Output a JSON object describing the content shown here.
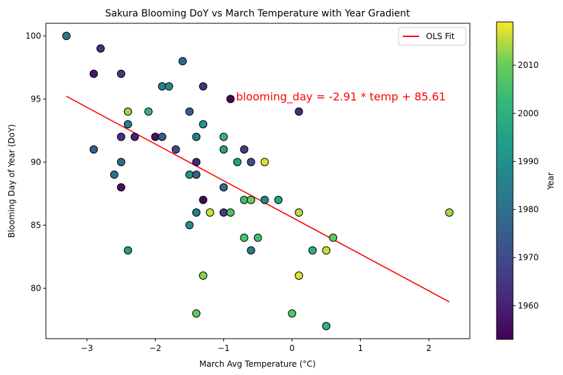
{
  "chart_data": {
    "type": "scatter",
    "title": "Sakura Blooming DoY vs March Temperature with Year Gradient",
    "xlabel": "March Avg Temperature (°C)",
    "ylabel": "Blooming Day of Year (DoY)",
    "xlim": [
      -3.6,
      2.6
    ],
    "ylim": [
      76,
      101
    ],
    "xticks": [
      {
        "value": -3,
        "label": "−3"
      },
      {
        "value": -2,
        "label": "−2"
      },
      {
        "value": -1,
        "label": "−1"
      },
      {
        "value": 0,
        "label": "0"
      },
      {
        "value": 1,
        "label": "1"
      },
      {
        "value": 2,
        "label": "2"
      }
    ],
    "yticks": [
      {
        "value": 80,
        "label": "80"
      },
      {
        "value": 85,
        "label": "85"
      },
      {
        "value": 90,
        "label": "90"
      },
      {
        "value": 95,
        "label": "95"
      },
      {
        "value": 100,
        "label": "100"
      }
    ],
    "colorbar": {
      "label": "Year",
      "colormap": "viridis",
      "range": [
        1953,
        2019
      ],
      "ticks": [
        1960,
        1970,
        1980,
        1990,
        2000,
        2010
      ]
    },
    "legend": {
      "position": "top-right",
      "entries": [
        {
          "label": "OLS Fit",
          "color": "#ff0000"
        }
      ]
    },
    "fit_line": {
      "slope": -2.91,
      "intercept": 85.61,
      "x_range": [
        -3.3,
        2.3
      ],
      "color": "#ff0000"
    },
    "annotation": {
      "text": "blooming_day = -2.91 * temp + 85.61",
      "x": -0.9,
      "y": 95,
      "color": "#ff0000"
    },
    "points": [
      {
        "x": -3.3,
        "y": 100,
        "year": 1983
      },
      {
        "x": -2.8,
        "y": 99,
        "year": 1963
      },
      {
        "x": -2.9,
        "y": 97,
        "year": 1958
      },
      {
        "x": -2.5,
        "y": 97,
        "year": 1966
      },
      {
        "x": -1.6,
        "y": 98,
        "year": 1978
      },
      {
        "x": -1.9,
        "y": 96,
        "year": 1985
      },
      {
        "x": -1.8,
        "y": 96,
        "year": 1988
      },
      {
        "x": -1.3,
        "y": 96,
        "year": 1964
      },
      {
        "x": -0.9,
        "y": 95,
        "year": 1954
      },
      {
        "x": 0.1,
        "y": 94,
        "year": 1962
      },
      {
        "x": -2.4,
        "y": 94,
        "year": 2013
      },
      {
        "x": -2.1,
        "y": 94,
        "year": 2002
      },
      {
        "x": -1.5,
        "y": 94,
        "year": 1974
      },
      {
        "x": -2.4,
        "y": 93,
        "year": 1986
      },
      {
        "x": -1.3,
        "y": 93,
        "year": 1992
      },
      {
        "x": -2.5,
        "y": 92,
        "year": 1964
      },
      {
        "x": -2.3,
        "y": 92,
        "year": 1960
      },
      {
        "x": -2.0,
        "y": 92,
        "year": 1957
      },
      {
        "x": -1.9,
        "y": 92,
        "year": 1975
      },
      {
        "x": -1.4,
        "y": 92,
        "year": 1985
      },
      {
        "x": -1.0,
        "y": 92,
        "year": 2002
      },
      {
        "x": -2.9,
        "y": 91,
        "year": 1976
      },
      {
        "x": -1.7,
        "y": 91,
        "year": 1970
      },
      {
        "x": -1.0,
        "y": 91,
        "year": 1995
      },
      {
        "x": -0.7,
        "y": 91,
        "year": 1966
      },
      {
        "x": -2.5,
        "y": 90,
        "year": 1979
      },
      {
        "x": -1.4,
        "y": 90,
        "year": 1961
      },
      {
        "x": -0.8,
        "y": 90,
        "year": 1995
      },
      {
        "x": -0.6,
        "y": 90,
        "year": 1970
      },
      {
        "x": -0.4,
        "y": 90,
        "year": 2017
      },
      {
        "x": -2.6,
        "y": 89,
        "year": 1980
      },
      {
        "x": -1.5,
        "y": 89,
        "year": 1992
      },
      {
        "x": -1.4,
        "y": 89,
        "year": 1975
      },
      {
        "x": -2.5,
        "y": 88,
        "year": 1956
      },
      {
        "x": -1.0,
        "y": 88,
        "year": 1978
      },
      {
        "x": -1.3,
        "y": 87,
        "year": 1954
      },
      {
        "x": -0.7,
        "y": 87,
        "year": 2005
      },
      {
        "x": -0.6,
        "y": 87,
        "year": 2011
      },
      {
        "x": -0.4,
        "y": 87,
        "year": 1987
      },
      {
        "x": -0.2,
        "y": 87,
        "year": 1997
      },
      {
        "x": -1.4,
        "y": 86,
        "year": 1985
      },
      {
        "x": -1.2,
        "y": 86,
        "year": 2016
      },
      {
        "x": -1.0,
        "y": 86,
        "year": 1966
      },
      {
        "x": -0.9,
        "y": 86,
        "year": 2006
      },
      {
        "x": 0.1,
        "y": 86,
        "year": 2015
      },
      {
        "x": 2.3,
        "y": 86,
        "year": 2014
      },
      {
        "x": -1.5,
        "y": 85,
        "year": 1990
      },
      {
        "x": -0.7,
        "y": 84,
        "year": 2006
      },
      {
        "x": -0.5,
        "y": 84,
        "year": 2004
      },
      {
        "x": 0.6,
        "y": 84,
        "year": 2009
      },
      {
        "x": -2.4,
        "y": 83,
        "year": 1994
      },
      {
        "x": -0.6,
        "y": 83,
        "year": 1983
      },
      {
        "x": 0.3,
        "y": 83,
        "year": 1999
      },
      {
        "x": 0.5,
        "y": 83,
        "year": 2016
      },
      {
        "x": -1.3,
        "y": 81,
        "year": 2012
      },
      {
        "x": 0.1,
        "y": 81,
        "year": 2017
      },
      {
        "x": -1.4,
        "y": 78,
        "year": 2009
      },
      {
        "x": 0.0,
        "y": 78,
        "year": 2007
      },
      {
        "x": 0.5,
        "y": 77,
        "year": 2000
      }
    ]
  }
}
